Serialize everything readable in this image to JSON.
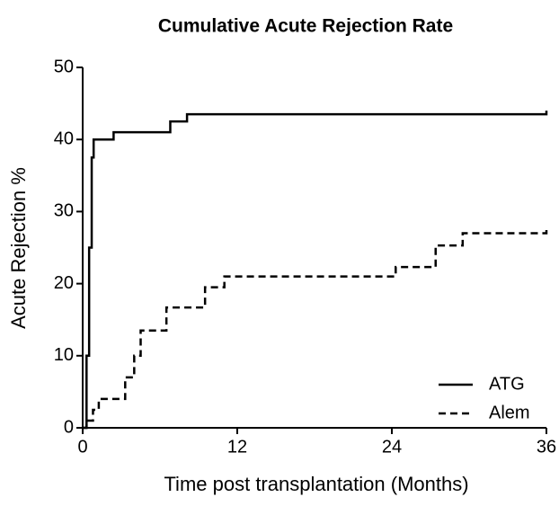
{
  "chart_data": {
    "type": "step",
    "title": "Cumulative Acute Rejection Rate",
    "x_label": "Time post transplantation (Months)",
    "y_label": "Acute Rejection %",
    "series": [
      {
        "name": "ATG",
        "color": "#000000",
        "dash": false,
        "x": [
          0,
          0.3,
          0.5,
          0.7,
          0.85,
          2.4,
          6.8,
          8.1,
          36
        ],
        "values": [
          0,
          10,
          25,
          37.5,
          40,
          41,
          42.5,
          43.5,
          44
        ]
      },
      {
        "name": "Alem",
        "color": "#000000",
        "dash": true,
        "x": [
          0,
          0.3,
          0.8,
          1.25,
          3.3,
          4.0,
          4.5,
          6.5,
          9.5,
          11,
          24.3,
          27.4,
          29.5,
          36
        ],
        "values": [
          0,
          1,
          2.5,
          4,
          7,
          10,
          13.5,
          16.7,
          19.5,
          21,
          22.3,
          25.3,
          27,
          27.5
        ]
      }
    ],
    "xlim": [
      0,
      36
    ],
    "xticks": [
      0,
      12,
      24,
      36
    ],
    "ylim": [
      0,
      50
    ],
    "yticks": [
      0,
      10,
      20,
      30,
      40,
      50
    ],
    "legend": "lower right"
  }
}
